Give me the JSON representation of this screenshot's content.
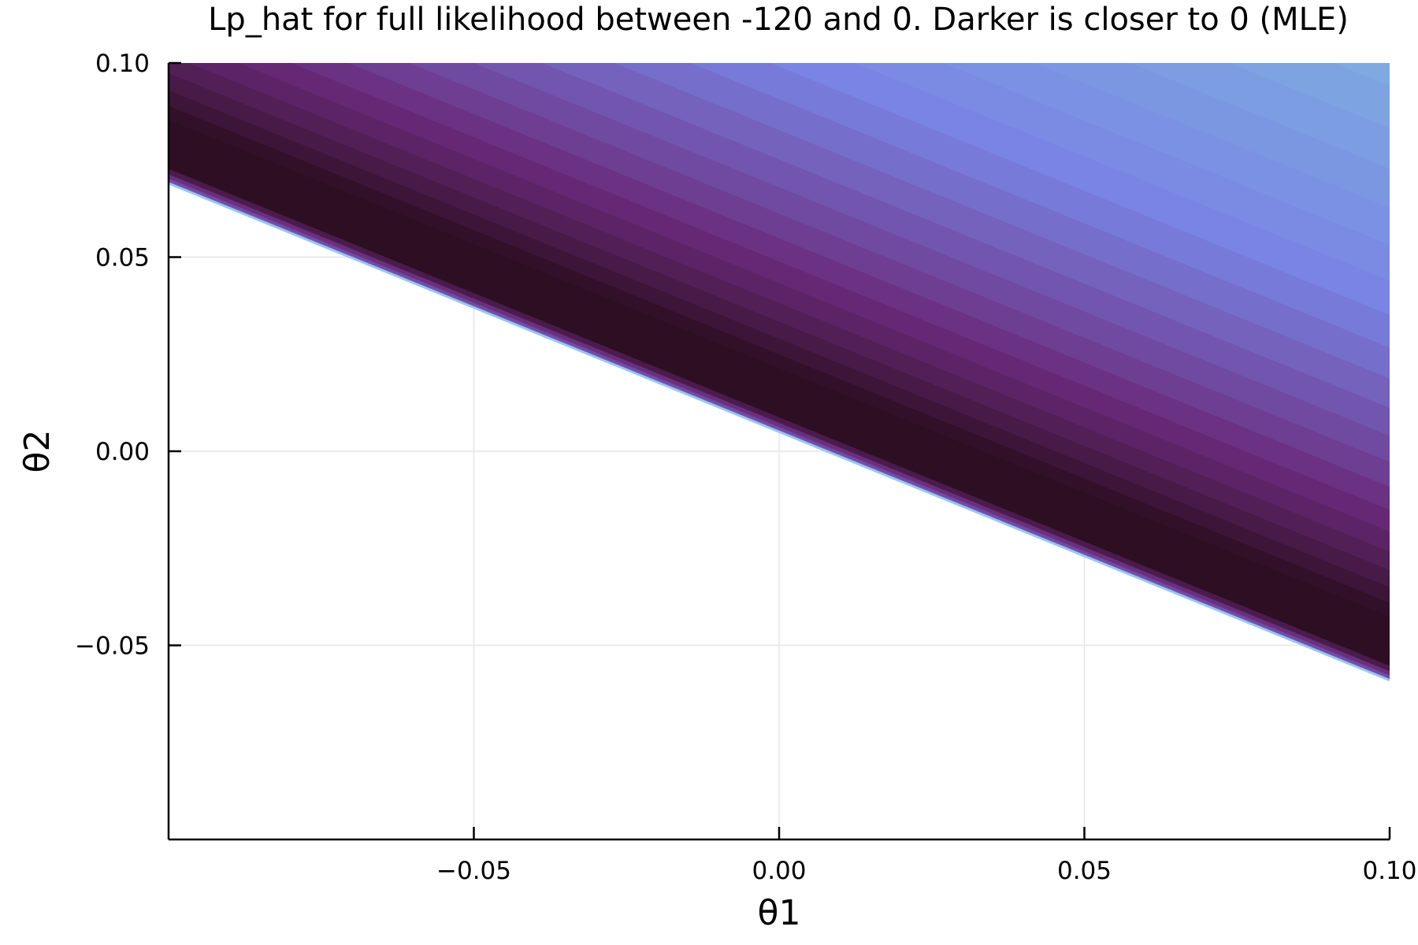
{
  "chart_data": {
    "type": "contour",
    "title": "Lp_hat for full likelihood between -120 and 0. Darker is closer to 0 (MLE)",
    "xlabel": "θ1",
    "ylabel": "θ2",
    "xlim": [
      -0.1,
      0.1
    ],
    "ylim": [
      -0.1,
      0.1
    ],
    "x_ticks": [
      -0.05,
      0.0,
      0.05,
      0.1
    ],
    "x_tick_labels": [
      "−0.05",
      "0.00",
      "0.05",
      "0.10"
    ],
    "y_ticks": [
      -0.05,
      0.0,
      0.05,
      0.1
    ],
    "y_tick_labels": [
      "−0.05",
      "0.00",
      "0.05",
      "0.10"
    ],
    "grid": true,
    "legend": false,
    "z_range": [
      -120,
      0
    ],
    "level_count": 40,
    "valid_region_boundary": {
      "intercept": 0.005,
      "slope": -0.64
    },
    "mle_ridge_offset": 0.006,
    "colors": {
      "near_mle": "#2d0e22",
      "mid_dark": "#6a2a7a",
      "mid": "#7a82e4",
      "mid_light": "#7fb4e0",
      "far": "#cbe2e7",
      "boundary": "#9ac8f0",
      "grid": "#e6e6e6",
      "axis": "#000000"
    }
  }
}
